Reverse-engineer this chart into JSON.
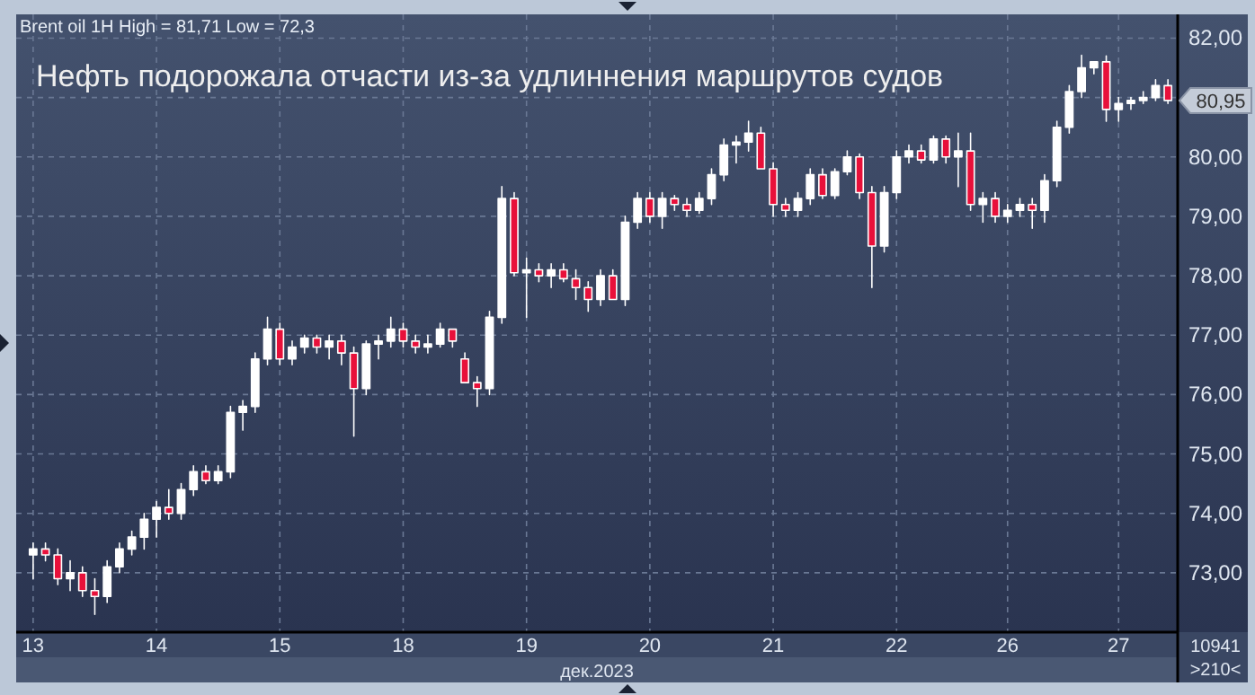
{
  "chart_data": {
    "type": "candlestick",
    "title": "Нефть подорожала отчасти из-за удлиннения маршрутов судов",
    "subtitle": "Brent oil 1H High = 81,71 Low = 72,3",
    "xlabel": "дек.2023",
    "annotations": [
      "80,95",
      "10941",
      ">210<"
    ],
    "categories": [
      "13",
      null,
      null,
      null,
      null,
      null,
      null,
      null,
      null,
      null,
      "14",
      null,
      null,
      null,
      null,
      null,
      null,
      null,
      null,
      null,
      "15",
      null,
      null,
      null,
      null,
      null,
      null,
      null,
      null,
      null,
      "18",
      null,
      null,
      null,
      null,
      null,
      null,
      null,
      null,
      null,
      "19",
      null,
      null,
      null,
      null,
      null,
      null,
      null,
      null,
      null,
      "20",
      null,
      null,
      null,
      null,
      null,
      null,
      null,
      null,
      null,
      "21",
      null,
      null,
      null,
      null,
      null,
      null,
      null,
      null,
      null,
      "22",
      null,
      null,
      null,
      null,
      null,
      null,
      null,
      null,
      "26",
      null,
      null,
      null,
      null,
      null,
      null,
      null,
      null,
      "27",
      null,
      null,
      null,
      null
    ],
    "ohlc": [
      [
        73.3,
        73.5,
        72.9,
        73.4
      ],
      [
        73.4,
        73.5,
        73.2,
        73.3
      ],
      [
        73.3,
        73.4,
        72.8,
        72.9
      ],
      [
        72.9,
        73.2,
        72.7,
        73.0
      ],
      [
        73.0,
        73.1,
        72.6,
        72.7
      ],
      [
        72.7,
        72.9,
        72.3,
        72.6
      ],
      [
        72.6,
        73.2,
        72.5,
        73.1
      ],
      [
        73.1,
        73.5,
        73.0,
        73.4
      ],
      [
        73.4,
        73.7,
        73.3,
        73.6
      ],
      [
        73.6,
        74.0,
        73.4,
        73.9
      ],
      [
        73.9,
        74.2,
        73.6,
        74.1
      ],
      [
        74.1,
        74.4,
        73.9,
        74.0
      ],
      [
        74.0,
        74.5,
        73.9,
        74.4
      ],
      [
        74.4,
        74.8,
        74.3,
        74.7
      ],
      [
        74.7,
        74.8,
        74.5,
        74.55
      ],
      [
        74.55,
        74.8,
        74.5,
        74.7
      ],
      [
        74.7,
        75.8,
        74.6,
        75.7
      ],
      [
        75.7,
        75.9,
        75.4,
        75.8
      ],
      [
        75.8,
        76.7,
        75.7,
        76.6
      ],
      [
        76.6,
        77.3,
        76.5,
        77.1
      ],
      [
        77.1,
        77.2,
        76.5,
        76.6
      ],
      [
        76.6,
        76.9,
        76.5,
        76.8
      ],
      [
        76.8,
        77.0,
        76.7,
        76.95
      ],
      [
        76.95,
        77.0,
        76.7,
        76.8
      ],
      [
        76.8,
        77.0,
        76.6,
        76.9
      ],
      [
        76.9,
        77.0,
        76.5,
        76.7
      ],
      [
        76.7,
        76.8,
        75.3,
        76.1
      ],
      [
        76.1,
        76.9,
        76.0,
        76.85
      ],
      [
        76.85,
        77.0,
        76.6,
        76.9
      ],
      [
        76.9,
        77.3,
        76.8,
        77.1
      ],
      [
        77.1,
        77.2,
        76.8,
        76.9
      ],
      [
        76.9,
        77.0,
        76.7,
        76.8
      ],
      [
        76.8,
        77.0,
        76.7,
        76.85
      ],
      [
        76.85,
        77.2,
        76.8,
        77.1
      ],
      [
        77.1,
        77.1,
        76.8,
        76.9
      ],
      [
        76.6,
        76.7,
        76.2,
        76.2
      ],
      [
        76.2,
        76.3,
        75.8,
        76.1
      ],
      [
        76.1,
        77.4,
        76.0,
        77.3
      ],
      [
        77.3,
        79.5,
        77.2,
        79.3
      ],
      [
        79.3,
        79.4,
        78.0,
        78.05
      ],
      [
        78.05,
        78.3,
        77.3,
        78.1
      ],
      [
        78.1,
        78.2,
        77.9,
        78.0
      ],
      [
        78.0,
        78.2,
        77.8,
        78.1
      ],
      [
        78.1,
        78.2,
        77.9,
        77.95
      ],
      [
        77.95,
        78.1,
        77.6,
        77.8
      ],
      [
        77.8,
        77.9,
        77.4,
        77.6
      ],
      [
        77.6,
        78.1,
        77.5,
        78.0
      ],
      [
        78.0,
        78.1,
        77.6,
        77.6
      ],
      [
        77.6,
        79.0,
        77.5,
        78.9
      ],
      [
        78.9,
        79.4,
        78.8,
        79.3
      ],
      [
        79.3,
        79.4,
        78.9,
        79.0
      ],
      [
        79.0,
        79.4,
        78.8,
        79.3
      ],
      [
        79.3,
        79.35,
        79.1,
        79.2
      ],
      [
        79.2,
        79.3,
        79.0,
        79.1
      ],
      [
        79.1,
        79.4,
        79.05,
        79.3
      ],
      [
        79.3,
        79.8,
        79.2,
        79.7
      ],
      [
        79.7,
        80.3,
        79.6,
        80.2
      ],
      [
        80.2,
        80.35,
        79.9,
        80.25
      ],
      [
        80.25,
        80.6,
        80.1,
        80.4
      ],
      [
        80.4,
        80.5,
        79.8,
        79.8
      ],
      [
        79.8,
        79.9,
        79.0,
        79.2
      ],
      [
        79.2,
        79.3,
        79.0,
        79.1
      ],
      [
        79.1,
        79.4,
        79.0,
        79.3
      ],
      [
        79.3,
        79.8,
        79.2,
        79.7
      ],
      [
        79.7,
        79.8,
        79.3,
        79.35
      ],
      [
        79.35,
        79.8,
        79.3,
        79.75
      ],
      [
        79.75,
        80.1,
        79.7,
        80.0
      ],
      [
        80.0,
        80.05,
        79.3,
        79.4
      ],
      [
        79.4,
        79.5,
        77.8,
        78.5
      ],
      [
        78.5,
        79.5,
        78.4,
        79.4
      ],
      [
        79.4,
        80.1,
        79.3,
        80.0
      ],
      [
        80.0,
        80.2,
        79.9,
        80.1
      ],
      [
        80.1,
        80.2,
        79.9,
        79.95
      ],
      [
        79.95,
        80.35,
        79.9,
        80.3
      ],
      [
        80.3,
        80.35,
        79.9,
        80.0
      ],
      [
        80.0,
        80.4,
        79.5,
        80.1
      ],
      [
        80.1,
        80.4,
        79.1,
        79.2
      ],
      [
        79.2,
        79.4,
        78.9,
        79.3
      ],
      [
        79.3,
        79.4,
        78.9,
        79.0
      ],
      [
        79.0,
        79.2,
        78.9,
        79.1
      ],
      [
        79.1,
        79.3,
        79.0,
        79.2
      ],
      [
        79.2,
        79.3,
        78.8,
        79.1
      ],
      [
        79.1,
        79.7,
        78.9,
        79.6
      ],
      [
        79.6,
        80.6,
        79.5,
        80.5
      ],
      [
        80.5,
        81.2,
        80.4,
        81.1
      ],
      [
        81.1,
        81.71,
        81.0,
        81.5
      ],
      [
        81.5,
        81.6,
        81.4,
        81.6
      ],
      [
        81.6,
        81.7,
        80.6,
        80.8
      ],
      [
        80.8,
        81.0,
        80.6,
        80.9
      ],
      [
        80.9,
        81.0,
        80.8,
        80.95
      ],
      [
        80.95,
        81.1,
        80.9,
        81.0
      ],
      [
        81.0,
        81.3,
        80.95,
        81.2
      ],
      [
        81.2,
        81.3,
        80.9,
        80.95
      ]
    ],
    "colors": [
      "#ffffff",
      "#e8103a",
      "#e8103a",
      "#ffffff",
      "#e8103a",
      "#e8103a",
      "#ffffff",
      "#ffffff",
      "#ffffff",
      "#ffffff",
      "#ffffff",
      "#e8103a",
      "#ffffff",
      "#ffffff",
      "#e8103a",
      "#ffffff",
      "#ffffff",
      "#ffffff",
      "#ffffff",
      "#ffffff",
      "#e8103a",
      "#ffffff",
      "#ffffff",
      "#e8103a",
      "#ffffff",
      "#e8103a",
      "#e8103a",
      "#ffffff",
      "#ffffff",
      "#ffffff",
      "#e8103a",
      "#e8103a",
      "#ffffff",
      "#ffffff",
      "#e8103a",
      "#e8103a",
      "#e8103a",
      "#ffffff",
      "#ffffff",
      "#e8103a",
      "#ffffff",
      "#e8103a",
      "#ffffff",
      "#e8103a",
      "#e8103a",
      "#e8103a",
      "#ffffff",
      "#e8103a",
      "#ffffff",
      "#ffffff",
      "#e8103a",
      "#ffffff",
      "#e8103a",
      "#e8103a",
      "#ffffff",
      "#ffffff",
      "#ffffff",
      "#ffffff",
      "#ffffff",
      "#e8103a",
      "#e8103a",
      "#e8103a",
      "#ffffff",
      "#ffffff",
      "#e8103a",
      "#ffffff",
      "#ffffff",
      "#e8103a",
      "#e8103a",
      "#ffffff",
      "#ffffff",
      "#ffffff",
      "#e8103a",
      "#ffffff",
      "#e8103a",
      "#ffffff",
      "#e8103a",
      "#ffffff",
      "#e8103a",
      "#ffffff",
      "#ffffff",
      "#e8103a",
      "#ffffff",
      "#ffffff",
      "#ffffff",
      "#ffffff",
      "#ffffff",
      "#e8103a",
      "#ffffff",
      "#ffffff",
      "#ffffff",
      "#ffffff",
      "#e8103a"
    ],
    "ylim": [
      72.0,
      82.4
    ],
    "yticks": [
      {
        "value": 73,
        "label": "73,00"
      },
      {
        "value": 74,
        "label": "74,00"
      },
      {
        "value": 75,
        "label": "75,00"
      },
      {
        "value": 76,
        "label": "76,00"
      },
      {
        "value": 77,
        "label": "77,00"
      },
      {
        "value": 78,
        "label": "78,00"
      },
      {
        "value": 79,
        "label": "79,00"
      },
      {
        "value": 80,
        "label": "80,00"
      },
      {
        "value": 81,
        "label": null
      },
      {
        "value": 82,
        "label": "82,00"
      }
    ],
    "grid": true
  }
}
